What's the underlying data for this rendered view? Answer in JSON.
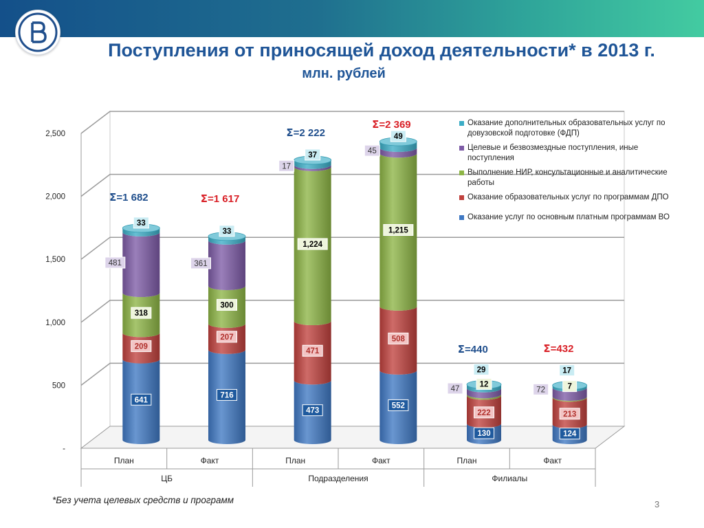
{
  "title": "Поступления от приносящей доход деятельности* в 2013 г.",
  "subtitle": "млн. рублей",
  "footnote": "*Без учета целевых средств и программ",
  "page_number": "3",
  "colors": {
    "header_gradient": [
      "#14508a",
      "#43cba1"
    ],
    "title": "#1f5597",
    "sum_plan": "#1f4e8c",
    "sum_fact": "#d92027"
  },
  "chart_data": {
    "type": "bar",
    "stacked": true,
    "style": "3d-cylinder",
    "categories": [
      "План",
      "Факт",
      "План",
      "Факт",
      "План",
      "Факт"
    ],
    "groups": [
      {
        "label": "ЦБ",
        "columns": [
          0,
          1
        ]
      },
      {
        "label": "Подразделения",
        "columns": [
          2,
          3
        ]
      },
      {
        "label": "Филиалы",
        "columns": [
          4,
          5
        ]
      }
    ],
    "series": [
      {
        "name": "Оказание услуг по основным платным программам ВО",
        "color": "#3f78c3",
        "values": [
          641,
          716,
          473,
          552,
          130,
          124
        ],
        "labels": [
          "641",
          "716",
          "473",
          "552",
          "130",
          "124"
        ]
      },
      {
        "name": "Оказание  образовательных услуг по программам ДПО",
        "color": "#c0413d",
        "values": [
          209,
          207,
          471,
          508,
          222,
          213
        ],
        "labels": [
          "209",
          "207",
          "471",
          "508",
          "222",
          "213"
        ]
      },
      {
        "name": "Выполнение НИР, консультационные и аналитические работы",
        "color": "#8db545",
        "values": [
          318,
          300,
          1224,
          1215,
          12,
          7
        ],
        "labels": [
          "318",
          "300",
          "1,224",
          "1,215",
          "12",
          "7"
        ]
      },
      {
        "name": "Целевые и безвозмездные поступления, иные поступления",
        "color": "#7d5ba6",
        "values": [
          481,
          361,
          17,
          45,
          47,
          72
        ],
        "labels": [
          "481",
          "361",
          "17",
          "45",
          "47",
          "72"
        ]
      },
      {
        "name": "Оказание  дополнительных образовательных услуг по довузовской подготовке (ФДП)",
        "color": "#3cadc6",
        "values": [
          33,
          33,
          37,
          49,
          29,
          17
        ],
        "labels": [
          "33",
          "33",
          "37",
          "49",
          "29",
          "17"
        ]
      }
    ],
    "totals": [
      "=1 682",
      "=1 617",
      "=2 222",
      "=2 369",
      "=440",
      "=432"
    ],
    "total_symbol": "Σ",
    "y_ticks": [
      {
        "value": 0,
        "label": "-"
      },
      {
        "value": 500,
        "label": "500"
      },
      {
        "value": 1000,
        "label": "1,000"
      },
      {
        "value": 1500,
        "label": "1,500"
      },
      {
        "value": 2000,
        "label": "2,000"
      },
      {
        "value": 2500,
        "label": "2,500"
      }
    ],
    "ylim": [
      0,
      2500
    ],
    "grid": true,
    "legend_position": "right"
  }
}
